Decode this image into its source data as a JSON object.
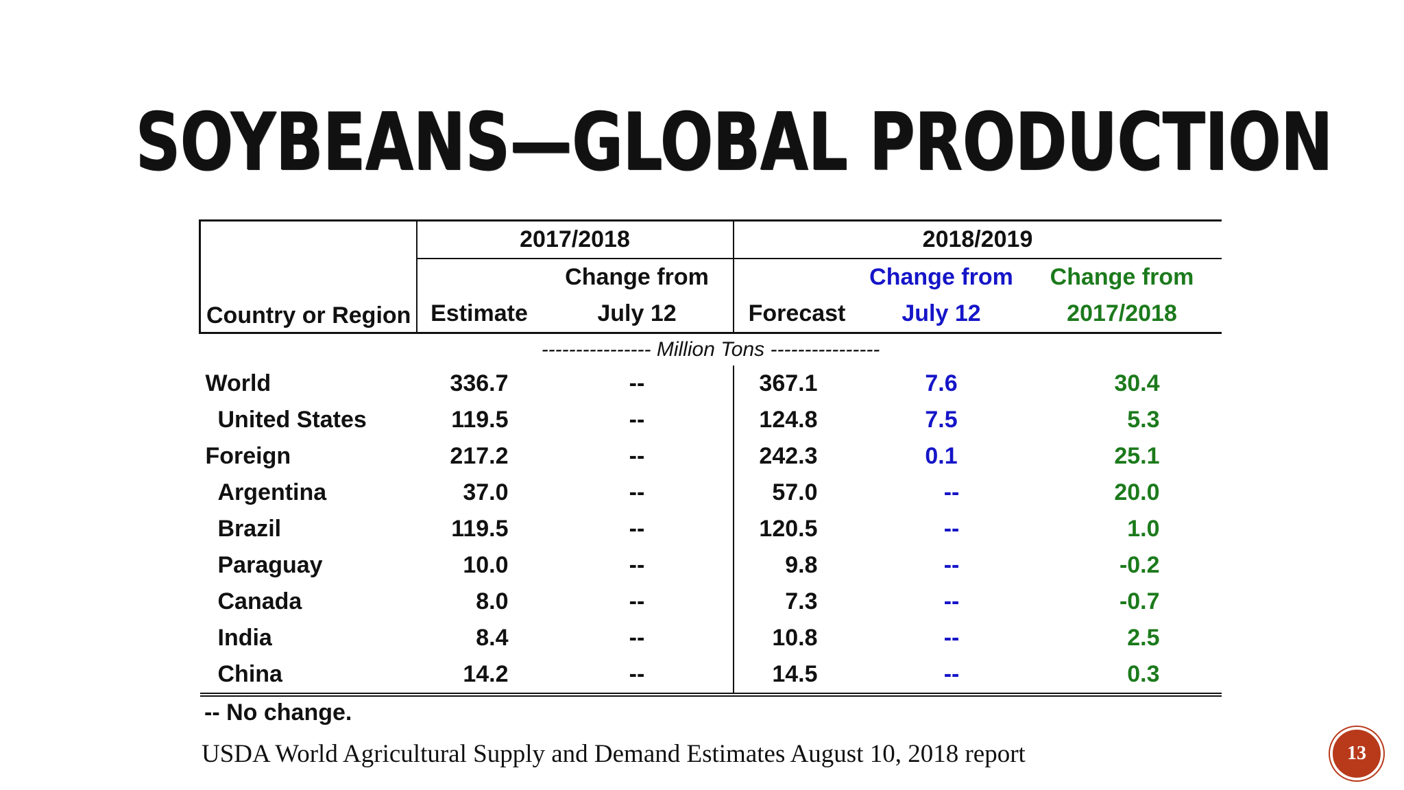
{
  "slide": {
    "title": "SOYBEANS—GLOBAL PRODUCTION",
    "page_number": "13"
  },
  "table": {
    "year_a": "2017/2018",
    "year_b": "2018/2019",
    "headers": {
      "country": "Country or Region",
      "estimate": "Estimate",
      "change_a_line1": "Change from",
      "change_a_line2": "July 12",
      "forecast": "Forecast",
      "change_b_line1": "Change from",
      "change_b_line2": "July 12",
      "change_c_line1": "Change from",
      "change_c_line2": "2017/2018"
    },
    "units": "---------------- Million Tons ----------------",
    "rows": [
      {
        "name": "World",
        "estimate": "336.7",
        "chg_a": "--",
        "forecast": "367.1",
        "chg_b": "7.6",
        "chg_c": "30.4"
      },
      {
        "name": "United States",
        "estimate": "119.5",
        "chg_a": "--",
        "forecast": "124.8",
        "chg_b": "7.5",
        "chg_c": "5.3"
      },
      {
        "name": "Foreign",
        "estimate": "217.2",
        "chg_a": "--",
        "forecast": "242.3",
        "chg_b": "0.1",
        "chg_c": "25.1"
      },
      {
        "name": "Argentina",
        "estimate": "37.0",
        "chg_a": "--",
        "forecast": "57.0",
        "chg_b": "--",
        "chg_c": "20.0"
      },
      {
        "name": "Brazil",
        "estimate": "119.5",
        "chg_a": "--",
        "forecast": "120.5",
        "chg_b": "--",
        "chg_c": "1.0"
      },
      {
        "name": "Paraguay",
        "estimate": "10.0",
        "chg_a": "--",
        "forecast": "9.8",
        "chg_b": "--",
        "chg_c": "-0.2"
      },
      {
        "name": "Canada",
        "estimate": "8.0",
        "chg_a": "--",
        "forecast": "7.3",
        "chg_b": "--",
        "chg_c": "-0.7"
      },
      {
        "name": "India",
        "estimate": "8.4",
        "chg_a": "--",
        "forecast": "10.8",
        "chg_b": "--",
        "chg_c": "2.5"
      },
      {
        "name": "China",
        "estimate": "14.2",
        "chg_a": "--",
        "forecast": "14.5",
        "chg_b": "--",
        "chg_c": "0.3"
      }
    ],
    "footnote": "-- No change."
  },
  "source": "USDA World Agricultural Supply and Demand Estimates August 10, 2018 report",
  "colors": {
    "blue_text": "#1515c8",
    "green_text": "#1c7a1c",
    "badge": "#b83a1b"
  }
}
